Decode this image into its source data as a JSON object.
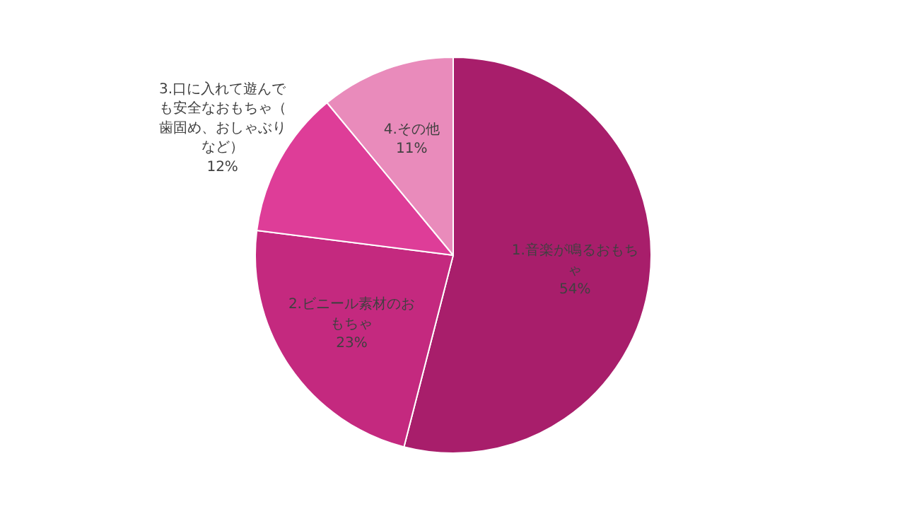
{
  "chart_data": {
    "type": "pie",
    "categories": [
      "1.音楽が鳴るおもちゃ",
      "2.ビニール素材のおもちゃ",
      "3.口に入れて遊んでも安全なおもちゃ（歯固め、おしゃぶりなど）",
      "4.その他"
    ],
    "values": [
      54,
      23,
      12,
      11
    ],
    "colors": [
      "#a81e6b",
      "#c4297f",
      "#de3d98",
      "#e98bbb"
    ],
    "value_labels": [
      "54%",
      "23%",
      "12%",
      "11%"
    ]
  }
}
